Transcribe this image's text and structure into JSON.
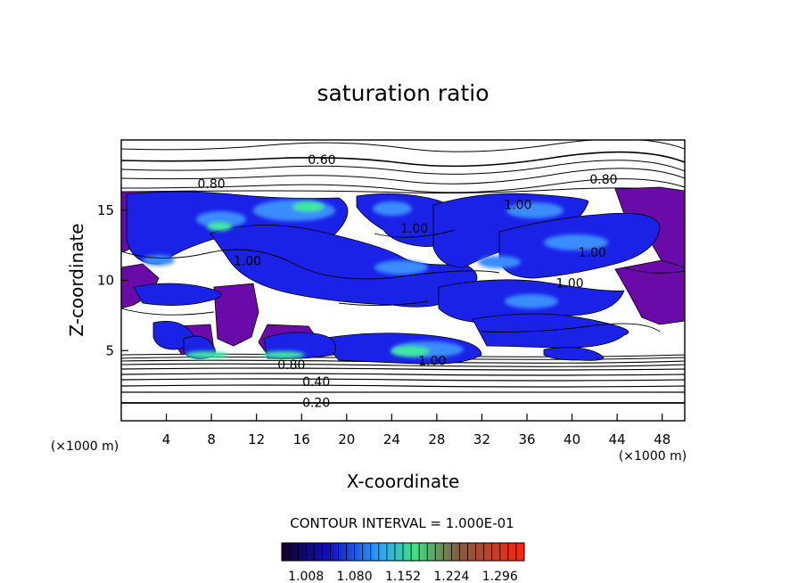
{
  "chart_data": {
    "type": "contour",
    "title": "saturation ratio",
    "xlabel": "X-coordinate",
    "ylabel": "Z-coordinate",
    "x_unit_left": "(×1000 m)",
    "x_unit_right": "(×1000 m)",
    "xlim": [
      0,
      50
    ],
    "ylim": [
      0,
      20
    ],
    "x_ticks": [
      4,
      8,
      12,
      16,
      20,
      24,
      28,
      32,
      36,
      40,
      44,
      48
    ],
    "y_ticks": [
      5,
      10,
      15
    ],
    "contour_interval_text": "CONTOUR INTERVAL = 1.000E-01",
    "contour_labels": [
      {
        "text": "0.60",
        "x": 17.8,
        "y": 18.6
      },
      {
        "text": "0.80",
        "x": 8.0,
        "y": 16.9
      },
      {
        "text": "0.80",
        "x": 42.8,
        "y": 17.2
      },
      {
        "text": "1.00",
        "x": 11.2,
        "y": 11.4
      },
      {
        "text": "1.00",
        "x": 26.0,
        "y": 13.7
      },
      {
        "text": "1.00",
        "x": 35.2,
        "y": 15.4
      },
      {
        "text": "1.00",
        "x": 41.8,
        "y": 12.0
      },
      {
        "text": "1.00",
        "x": 39.8,
        "y": 9.8
      },
      {
        "text": "1.00",
        "x": 27.6,
        "y": 4.3
      },
      {
        "text": "0.80",
        "x": 15.1,
        "y": 4.0
      },
      {
        "text": "0.40",
        "x": 17.3,
        "y": 2.8
      },
      {
        "text": "0.20",
        "x": 17.3,
        "y": 1.3
      }
    ],
    "colorbar": {
      "ticks": [
        "1.008",
        "1.080",
        "1.152",
        "1.224",
        "1.296"
      ],
      "range": [
        0.972,
        1.332
      ]
    }
  }
}
